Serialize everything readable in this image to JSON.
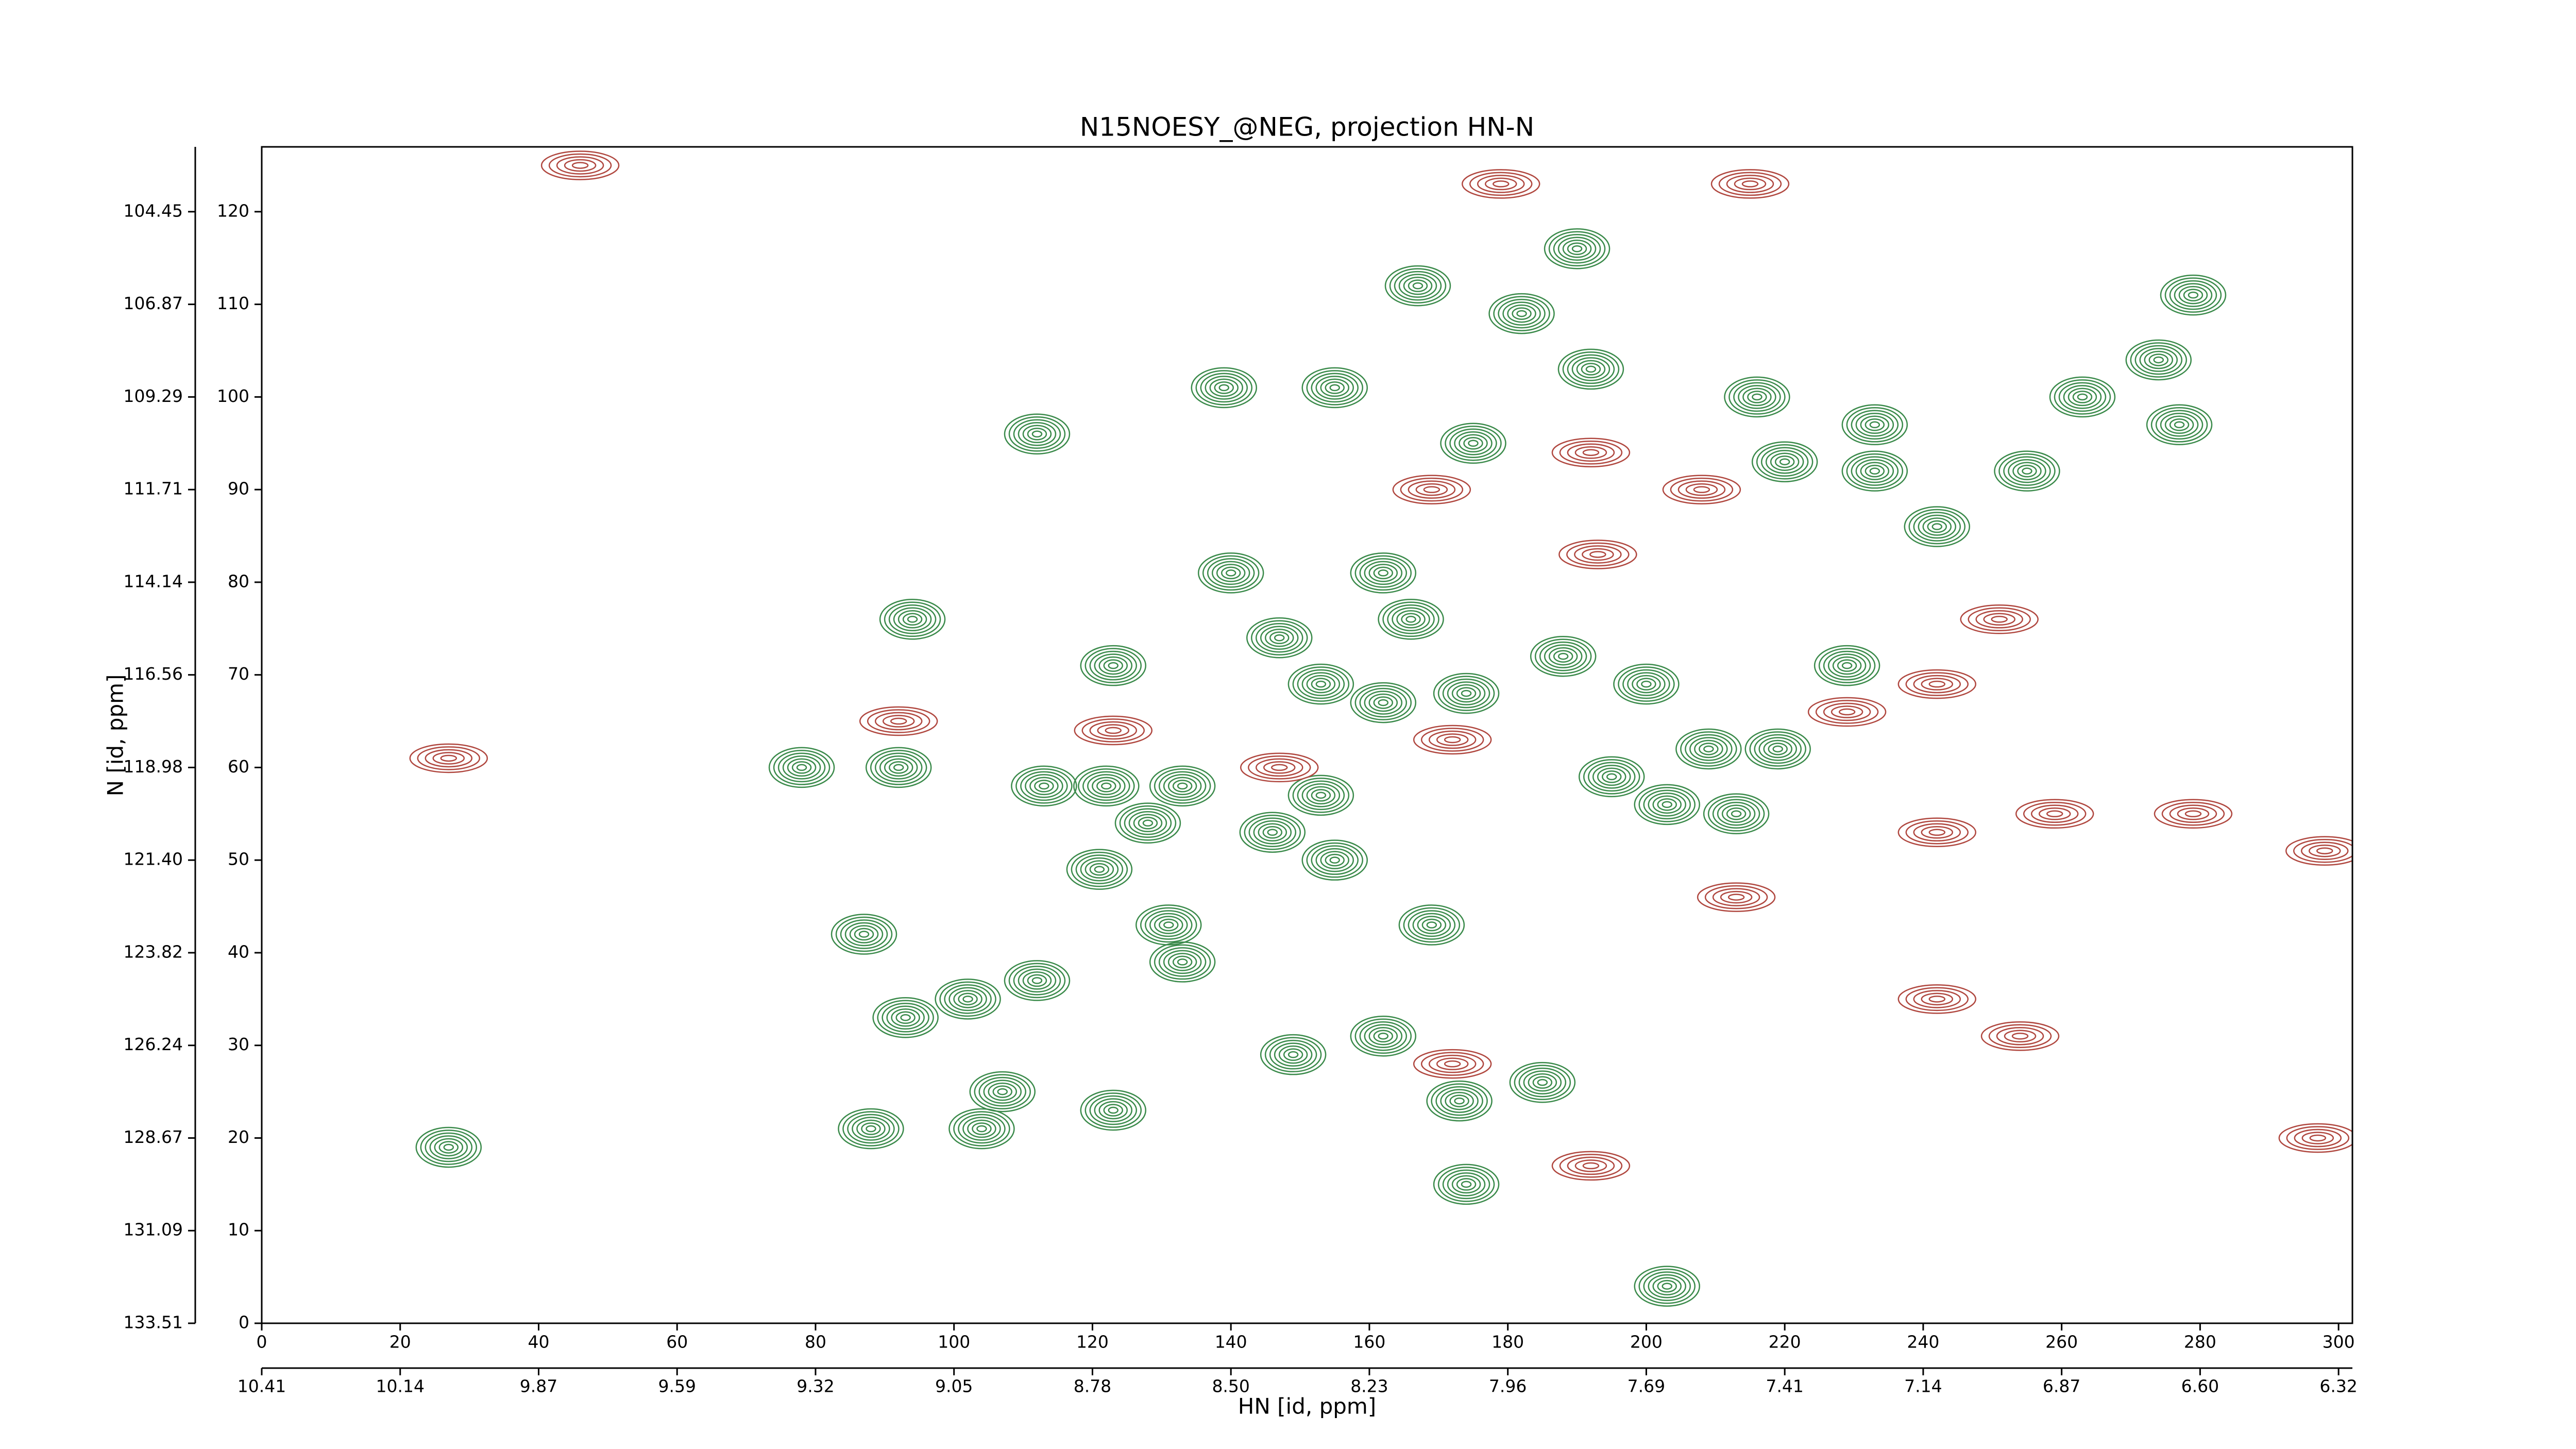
{
  "chart_data": {
    "type": "contour",
    "title": "N15NOESY_@NEG, projection HN-N",
    "xlabel": "HN [id, ppm]",
    "ylabel": "N [id, ppm]",
    "xlim": [
      0,
      302
    ],
    "ylim": [
      0,
      127
    ],
    "xticks": [
      0,
      20,
      40,
      60,
      80,
      100,
      120,
      140,
      160,
      180,
      200,
      220,
      240,
      260,
      280,
      300
    ],
    "x2ticks": [
      {
        "value": 0,
        "label": "10.41"
      },
      {
        "value": 20,
        "label": "10.14"
      },
      {
        "value": 40,
        "label": "9.87"
      },
      {
        "value": 60,
        "label": "9.59"
      },
      {
        "value": 80,
        "label": "9.32"
      },
      {
        "value": 100,
        "label": "9.05"
      },
      {
        "value": 120,
        "label": "8.78"
      },
      {
        "value": 140,
        "label": "8.50"
      },
      {
        "value": 160,
        "label": "8.23"
      },
      {
        "value": 180,
        "label": "7.96"
      },
      {
        "value": 200,
        "label": "7.69"
      },
      {
        "value": 220,
        "label": "7.41"
      },
      {
        "value": 240,
        "label": "7.14"
      },
      {
        "value": 260,
        "label": "6.87"
      },
      {
        "value": 280,
        "label": "6.60"
      },
      {
        "value": 300,
        "label": "6.32"
      }
    ],
    "yticks": [
      0,
      10,
      20,
      30,
      40,
      50,
      60,
      70,
      80,
      90,
      100,
      110,
      120
    ],
    "y2ticks": [
      {
        "value": 0,
        "label": "133.51"
      },
      {
        "value": 10,
        "label": "131.09"
      },
      {
        "value": 20,
        "label": "128.67"
      },
      {
        "value": 30,
        "label": "126.24"
      },
      {
        "value": 40,
        "label": "123.82"
      },
      {
        "value": 50,
        "label": "121.40"
      },
      {
        "value": 60,
        "label": "118.98"
      },
      {
        "value": 70,
        "label": "116.56"
      },
      {
        "value": 80,
        "label": "114.14"
      },
      {
        "value": 90,
        "label": "111.71"
      },
      {
        "value": 100,
        "label": "109.29"
      },
      {
        "value": 110,
        "label": "106.87"
      },
      {
        "value": 120,
        "label": "104.45"
      }
    ],
    "series": [
      {
        "color": "#3a8a4a",
        "x": [
          167,
          190,
          182,
          279,
          139,
          155,
          192,
          216,
          233,
          263,
          274,
          277,
          112,
          175,
          220,
          233,
          255,
          242,
          140,
          162,
          94,
          166,
          123,
          147,
          188,
          229,
          153,
          162,
          174,
          200,
          78,
          92,
          113,
          122,
          133,
          153,
          195,
          209,
          219,
          128,
          146,
          203,
          213,
          121,
          155,
          87,
          131,
          169,
          133,
          112,
          102,
          93,
          162,
          149,
          107,
          173,
          185,
          88,
          104,
          123,
          27,
          203,
          174
        ],
        "y": [
          112,
          116,
          109,
          111,
          101,
          101,
          103,
          100,
          97,
          100,
          104,
          97,
          96,
          95,
          93,
          92,
          92,
          86,
          81,
          81,
          76,
          76,
          71,
          74,
          72,
          71,
          69,
          67,
          68,
          69,
          60,
          60,
          58,
          58,
          58,
          57,
          59,
          62,
          62,
          54,
          53,
          56,
          55,
          49,
          50,
          42,
          43,
          43,
          39,
          37,
          35,
          33,
          31,
          29,
          25,
          24,
          26,
          21,
          21,
          23,
          19,
          4,
          15
        ]
      },
      {
        "color": "#b0473f",
        "x": [
          46,
          27,
          192,
          208,
          229,
          259,
          279,
          298,
          169,
          193,
          251,
          242,
          147,
          172,
          172,
          192,
          242,
          254,
          213,
          242,
          215,
          179,
          92,
          123,
          297
        ],
        "y": [
          125,
          61,
          94,
          90,
          66,
          55,
          55,
          51,
          90,
          83,
          76,
          69,
          60,
          63,
          28,
          17,
          35,
          31,
          46,
          53,
          123,
          123,
          65,
          64,
          20
        ]
      }
    ]
  }
}
